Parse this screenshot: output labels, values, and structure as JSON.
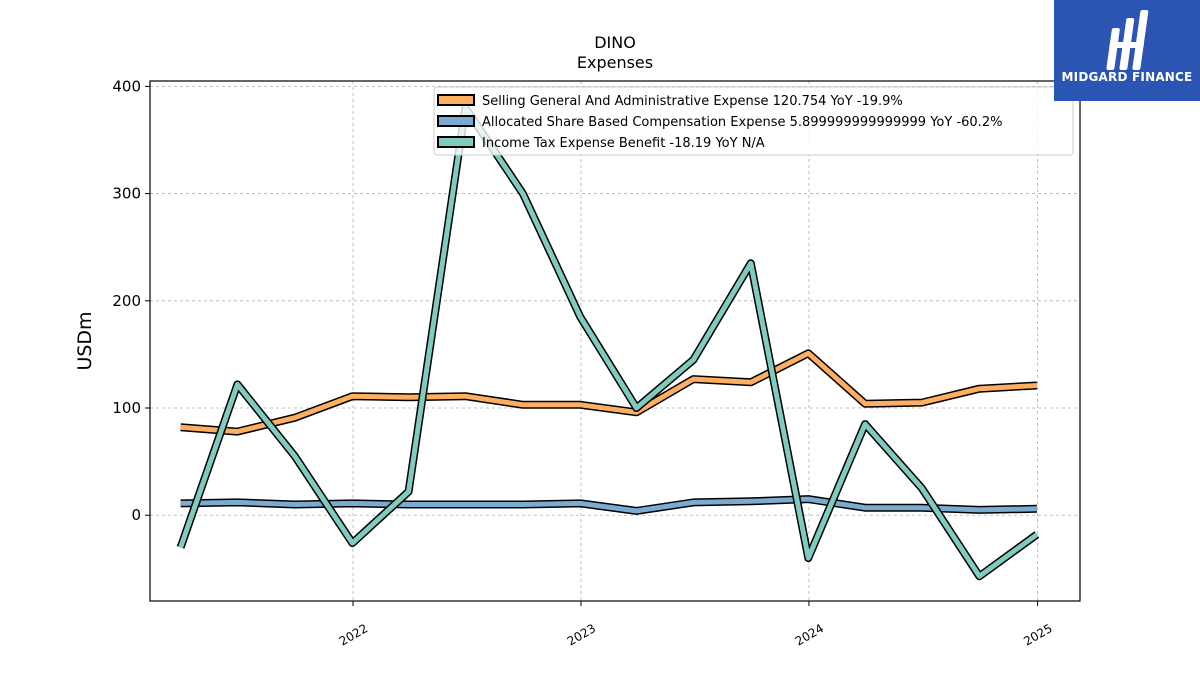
{
  "chart_data": {
    "type": "line",
    "title": "DINO",
    "subtitle": "Expenses",
    "ylabel": "USDm",
    "xlabel": "",
    "ylim": [
      -80,
      405
    ],
    "xlim": [
      "2021-02-10",
      "2025-03-10"
    ],
    "yticks": [
      0,
      100,
      200,
      300,
      400
    ],
    "xticks": [
      {
        "label": "2022",
        "date": "2022-01-01"
      },
      {
        "label": "2023",
        "date": "2023-01-01"
      },
      {
        "label": "2024",
        "date": "2024-01-01"
      },
      {
        "label": "2025",
        "date": "2025-01-01"
      }
    ],
    "grid": true,
    "legend_placement": "top-right",
    "x": [
      "2021-03-31",
      "2021-06-30",
      "2021-09-30",
      "2021-12-31",
      "2022-03-31",
      "2022-06-30",
      "2022-09-30",
      "2022-12-31",
      "2023-03-31",
      "2023-06-30",
      "2023-09-30",
      "2023-12-31",
      "2024-03-31",
      "2024-06-30",
      "2024-09-30",
      "2024-12-31"
    ],
    "series": [
      {
        "name": "Selling General And Administrative Expense  120.754 YoY -19.9%",
        "color": "#fdae61",
        "values": [
          82,
          78,
          91,
          111,
          110,
          111,
          103,
          103,
          96,
          127,
          124,
          151,
          104,
          105,
          118,
          121
        ]
      },
      {
        "name": "Allocated Share Based Compensation Expense  5.899999999999999 YoY -60.2%",
        "color": "#7aabd1",
        "values": [
          11,
          12,
          10,
          11,
          10,
          10,
          10,
          11,
          4,
          12,
          13,
          15,
          7,
          7,
          5,
          6
        ]
      },
      {
        "name": "Income Tax Expense Benefit  -18.19 YoY N/A",
        "color": "#80cbc0",
        "values": [
          -30,
          122,
          55,
          -26,
          22,
          380,
          300,
          185,
          100,
          145,
          235,
          -40,
          85,
          25,
          -57,
          -18
        ]
      }
    ]
  },
  "logo": {
    "text": "MIDGARD FINANCE",
    "color": "#2a55b2"
  }
}
